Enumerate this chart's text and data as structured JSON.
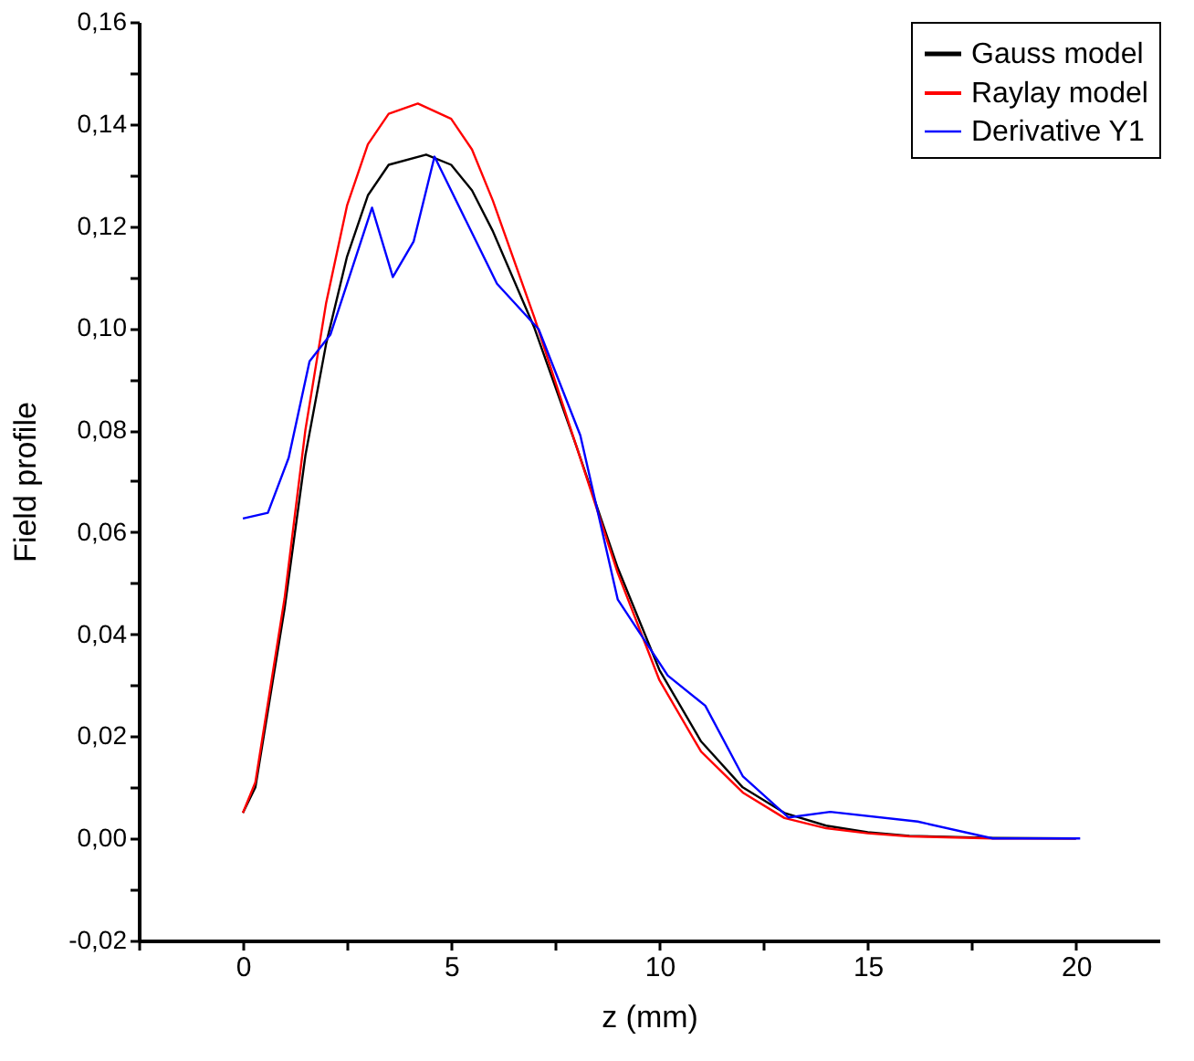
{
  "chart_data": {
    "type": "line",
    "xlabel": "z (mm)",
    "ylabel": "Field profile",
    "legend": "top right",
    "grid": false,
    "marker": "none",
    "line_style": "solid",
    "xlim": [
      -2.5,
      22
    ],
    "ylim": [
      -0.02,
      0.16
    ],
    "xticks": [
      {
        "value": -2.5,
        "label": null
      },
      0,
      {
        "value": 2.5,
        "label": null
      },
      5,
      {
        "value": 7.5,
        "label": null
      },
      10,
      {
        "value": 12.5,
        "label": null
      },
      15,
      {
        "value": 17.5,
        "label": null
      },
      20
    ],
    "yticks": [
      {
        "value": -0.02,
        "label": "-0,02"
      },
      {
        "value": -0.01,
        "label": null
      },
      {
        "value": 0,
        "label": "0,00"
      },
      {
        "value": 0.01,
        "label": null
      },
      {
        "value": 0.02,
        "label": "0,02"
      },
      {
        "value": 0.03,
        "label": null
      },
      {
        "value": 0.04,
        "label": "0,04"
      },
      {
        "value": 0.05,
        "label": null
      },
      {
        "value": 0.06,
        "label": "0,06"
      },
      {
        "value": 0.07,
        "label": null
      },
      {
        "value": 0.08,
        "label": "0,08"
      },
      {
        "value": 0.09,
        "label": null
      },
      {
        "value": 0.1,
        "label": "0,10"
      },
      {
        "value": 0.11,
        "label": null
      },
      {
        "value": 0.12,
        "label": "0,12"
      },
      {
        "value": 0.13,
        "label": null
      },
      {
        "value": 0.14,
        "label": "0,14"
      },
      {
        "value": 0.15,
        "label": null
      },
      {
        "value": 0.16,
        "label": "0,16"
      }
    ],
    "series": [
      {
        "name": "Gauss model",
        "color": "#000000",
        "x": [
          0,
          0.3,
          1,
          1.5,
          2,
          2.5,
          3,
          3.5,
          4.4,
          5,
          5.5,
          6,
          7,
          8,
          9,
          10,
          11,
          12,
          13,
          14,
          15,
          16,
          18,
          20
        ],
        "values": [
          0.005,
          0.01,
          0.045,
          0.075,
          0.097,
          0.114,
          0.126,
          0.132,
          0.134,
          0.132,
          0.127,
          0.119,
          0.1,
          0.077,
          0.053,
          0.033,
          0.019,
          0.01,
          0.005,
          0.0025,
          0.0012,
          0.0005,
          0.0001,
          0
        ]
      },
      {
        "name": "Raylay model",
        "color": "#ff0000",
        "x": [
          0,
          0.3,
          1,
          1.5,
          2,
          2.5,
          3,
          3.5,
          4.2,
          5,
          5.5,
          6,
          7,
          8,
          9,
          10,
          11,
          12,
          13,
          14,
          15,
          16,
          18,
          20
        ],
        "values": [
          0.005,
          0.011,
          0.047,
          0.08,
          0.105,
          0.124,
          0.136,
          0.142,
          0.144,
          0.141,
          0.135,
          0.125,
          0.102,
          0.077,
          0.052,
          0.031,
          0.017,
          0.009,
          0.004,
          0.002,
          0.001,
          0.0004,
          0,
          0
        ]
      },
      {
        "name": "Derivative Y1",
        "color": "#0000ff",
        "x": [
          0,
          0.6,
          1.1,
          1.6,
          2.1,
          3.1,
          3.6,
          4.1,
          4.6,
          6.1,
          7.1,
          8.1,
          9,
          10.2,
          11.1,
          12,
          13.1,
          14.1,
          16.2,
          18,
          20.1
        ],
        "values": [
          0.0627,
          0.0638,
          0.0746,
          0.0935,
          0.0987,
          0.1236,
          0.11,
          0.117,
          0.1336,
          0.1087,
          0.0998,
          0.079,
          0.0468,
          0.0319,
          0.026,
          0.0122,
          0.0041,
          0.0052,
          0.0033,
          0,
          0
        ]
      }
    ]
  }
}
